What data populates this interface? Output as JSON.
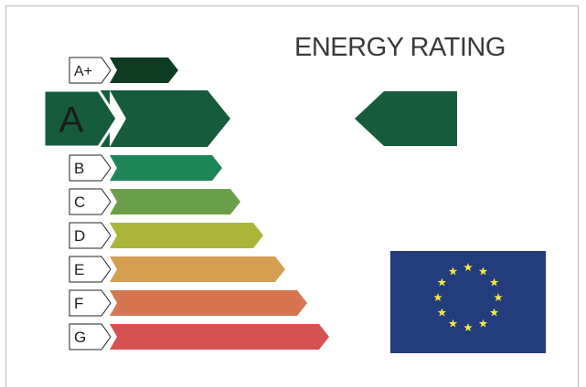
{
  "title": "ENERGY RATING",
  "selected_grade": "A",
  "grades": [
    {
      "label": "A+",
      "color": "#0e3b22"
    },
    {
      "label": "A",
      "color": "#165c3c"
    },
    {
      "label": "B",
      "color": "#1e8559"
    },
    {
      "label": "C",
      "color": "#6b9e48"
    },
    {
      "label": "D",
      "color": "#abb53a"
    },
    {
      "label": "E",
      "color": "#d49e52"
    },
    {
      "label": "F",
      "color": "#d67651"
    },
    {
      "label": "G",
      "color": "#d65252"
    }
  ],
  "rating_arrow_color": "#165c3c",
  "flag": {
    "background": "#233c7c",
    "star_color": "#f2e640",
    "star_count": 12
  }
}
